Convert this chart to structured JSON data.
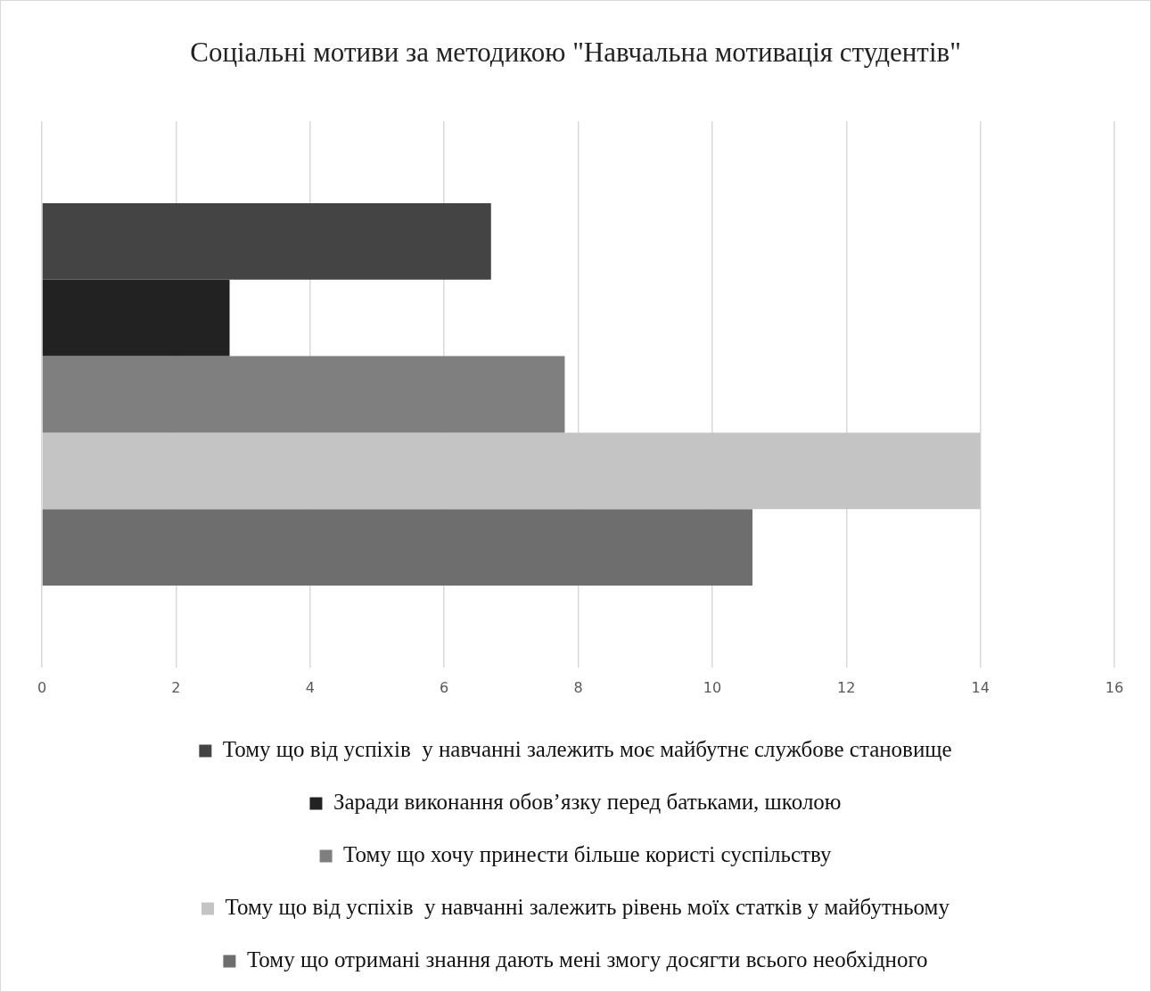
{
  "chart_data": {
    "type": "bar",
    "orientation": "horizontal",
    "title": "Соціальні мотиви за методикою \"Навчальна мотивація студентів\"",
    "categories": [
      null
    ],
    "series": [
      {
        "name": "Тому що від успіхів  у навчанні залежить моє майбутнє службове становище",
        "color": "#444444",
        "values": [
          6.7
        ]
      },
      {
        "name": "Заради виконання обов’язку перед батьками, школою",
        "color": "#222222",
        "values": [
          2.8
        ]
      },
      {
        "name": "Тому що хочу принести більше користі суспільству",
        "color": "#7f7f7f",
        "values": [
          7.8
        ]
      },
      {
        "name": "Тому що від успіхів  у навчанні залежить рівень моїх статків у майбутньому",
        "color": "#c4c4c4",
        "values": [
          14
        ]
      },
      {
        "name": "Тому що отримані знання дають мені змогу досягти всього необхідного",
        "color": "#6e6e6e",
        "values": [
          10.6
        ]
      }
    ],
    "xlim": [
      0,
      16
    ],
    "xticks": [
      0,
      2,
      4,
      6,
      8,
      10,
      12,
      14,
      16
    ],
    "grid": "x",
    "legend": "bottom"
  }
}
